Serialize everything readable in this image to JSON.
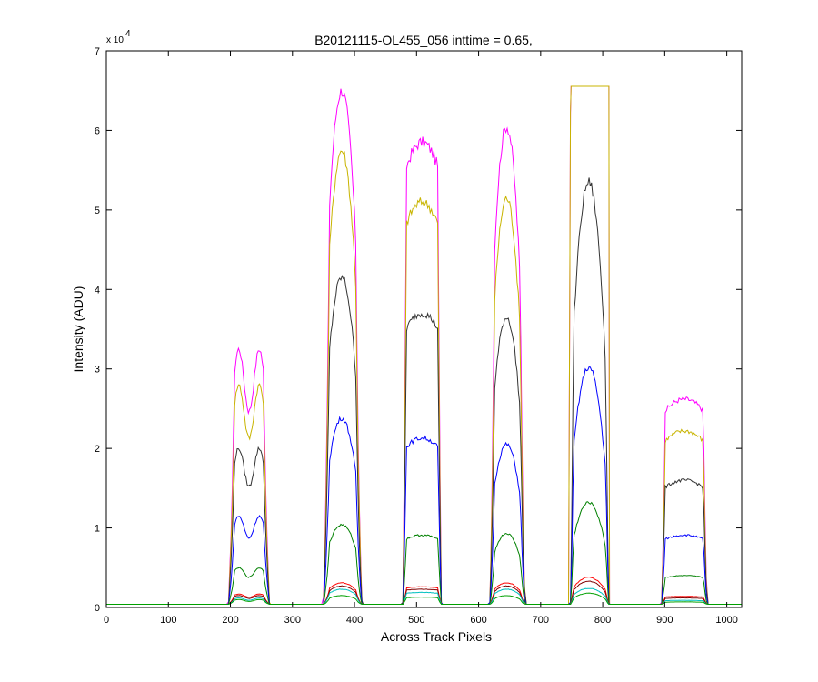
{
  "chart_data": {
    "type": "line",
    "title": "B20121115-OL455_056 inttime = 0.65,",
    "xlabel": "Across Track Pixels",
    "ylabel": "Intensity (ADU)",
    "y_multiplier_label": "x 10",
    "y_multiplier_exponent": "4",
    "xlim": [
      0,
      1024
    ],
    "ylim": [
      0,
      70000
    ],
    "x_ticks": [
      0,
      100,
      200,
      300,
      400,
      500,
      600,
      700,
      800,
      900,
      1000
    ],
    "y_ticks": [
      0,
      1,
      2,
      3,
      4,
      5,
      6,
      7
    ],
    "y_tick_scale": 10000,
    "grid": false,
    "legend": "none",
    "baseline": 400,
    "bands": [
      {
        "start": 197,
        "end": 263,
        "rise": 10,
        "shape": "double"
      },
      {
        "start": 350,
        "end": 412,
        "rise": 10,
        "shape": "peak"
      },
      {
        "start": 478,
        "end": 540,
        "rise": 6,
        "shape": "flat"
      },
      {
        "start": 618,
        "end": 675,
        "rise": 8,
        "shape": "peak"
      },
      {
        "start": 748,
        "end": 810,
        "rise": 5,
        "shape": "peak"
      },
      {
        "start": 895,
        "end": 968,
        "rise": 6,
        "shape": "flat"
      }
    ],
    "series": [
      {
        "color": "#ff00ff",
        "peaks": [
          32500,
          65000,
          58500,
          60500,
          65535,
          26200
        ],
        "saturated_band": 4,
        "saturation": 65535
      },
      {
        "color": "#c8b400",
        "peaks": [
          28000,
          57500,
          51000,
          51500,
          65535,
          22200
        ],
        "saturated_band": 4,
        "saturation": 65535
      },
      {
        "color": "#333333",
        "peaks": [
          20000,
          41500,
          37000,
          36500,
          53500,
          16000
        ]
      },
      {
        "color": "#0000ff",
        "peaks": [
          11500,
          23800,
          21300,
          20500,
          30200,
          9100
        ]
      },
      {
        "color": "#008000",
        "peaks": [
          5000,
          10400,
          9100,
          9300,
          13200,
          4000
        ]
      },
      {
        "color": "#ff0000",
        "peaks": [
          1700,
          3100,
          2600,
          3100,
          3800,
          1400
        ]
      },
      {
        "color": "#800000",
        "peaks": [
          1500,
          2700,
          2300,
          2700,
          3300,
          1200
        ]
      },
      {
        "color": "#00c0c0",
        "peaks": [
          1200,
          2300,
          1900,
          2300,
          2400,
          900
        ]
      },
      {
        "color": "#00a000",
        "peaks": [
          1000,
          1500,
          1300,
          1500,
          1800,
          700
        ]
      }
    ]
  }
}
